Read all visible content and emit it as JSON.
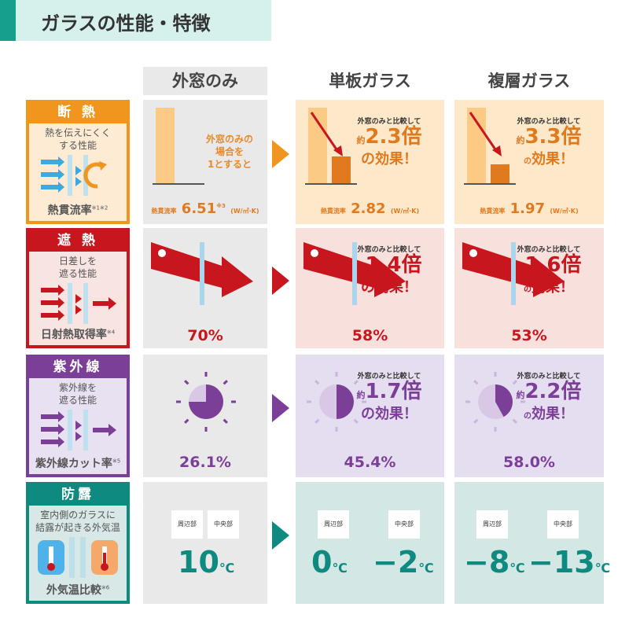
{
  "title": "ガラスの性能・特徴",
  "columns": [
    "外窓のみ",
    "単板ガラス",
    "複層ガラス"
  ],
  "compare_lead": "外窓のみと比較して",
  "approx": "約",
  "effect_suffix": "の効果！",
  "no": "の",
  "effect": "効果！",
  "colors": {
    "orange": "#f0961e",
    "red": "#c8161e",
    "purple": "#7b3f98",
    "teal": "#0e8a80",
    "gray": "#e9e9e9"
  },
  "rows": [
    {
      "key": "insulation",
      "title": "断 熱",
      "desc": "熱を伝えにくく\nする性能",
      "metric": "熱貫流率",
      "note": "※1※2",
      "icon": "heat-flow-icon",
      "base_note": "外窓のみの\n場合を\n1とすると",
      "metric_label": "熱貫流率",
      "unit": "(W/㎡·K)",
      "base_value_note": "※3",
      "values": [
        "6.51",
        "2.82",
        "1.97"
      ],
      "ratios": [
        null,
        "2.3倍",
        "3.3倍"
      ]
    },
    {
      "key": "solar",
      "title": "遮 熱",
      "desc": "日差しを\n遮る性能",
      "metric": "日射熱取得率",
      "note": "※4",
      "icon": "sun-block-icon",
      "values": [
        "70%",
        "58%",
        "53%"
      ],
      "ratios": [
        null,
        "1.4倍",
        "1.6倍"
      ]
    },
    {
      "key": "uv",
      "title": "紫外線",
      "desc": "紫外線を\n遮る性能",
      "metric": "紫外線カット率",
      "note": "※5",
      "icon": "uv-block-icon",
      "values": [
        "26.1%",
        "45.4%",
        "58.0%"
      ],
      "ratios": [
        null,
        "1.7倍",
        "2.2倍"
      ]
    },
    {
      "key": "condensation",
      "title": "防露",
      "desc": "室内側のガラスに\n結露が起きる外気温",
      "metric": "外気温比較",
      "note": "※6",
      "icon": "thermometer-icon",
      "tags": [
        "周辺部",
        "中央部"
      ],
      "temp_unit": "℃",
      "temps": [
        [
          "10"
        ],
        [
          "0",
          "−2"
        ],
        [
          "−8",
          "−13"
        ]
      ]
    }
  ]
}
